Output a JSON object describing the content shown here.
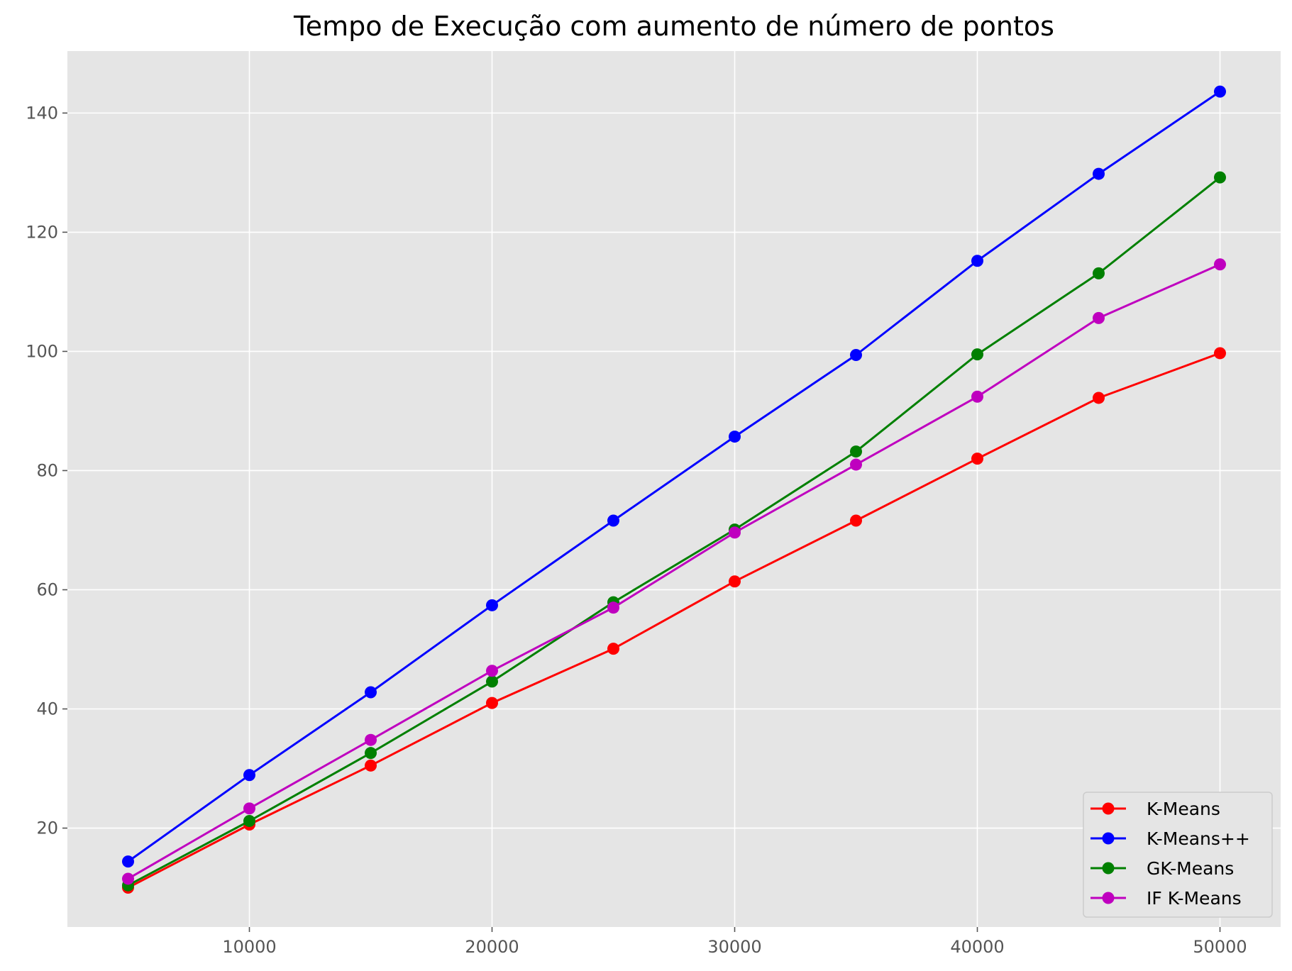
{
  "chart_data": {
    "type": "line",
    "title": "Tempo de Execução com aumento de número de pontos",
    "xlabel": "",
    "ylabel": "",
    "x": [
      5000,
      10000,
      15000,
      20000,
      25000,
      30000,
      35000,
      40000,
      45000,
      50000
    ],
    "xlim": [
      2500,
      52500
    ],
    "ylim": [
      3.4,
      150.4
    ],
    "xticks": [
      10000,
      20000,
      30000,
      40000,
      50000
    ],
    "yticks": [
      20,
      40,
      60,
      80,
      100,
      120,
      140
    ],
    "grid": true,
    "legend_position": "lower right",
    "background": "#e5e5e5",
    "grid_color": "#ffffff",
    "series": [
      {
        "name": "K-Means",
        "color": "#ff0000",
        "values": [
          10.0,
          20.6,
          30.5,
          41.0,
          50.1,
          61.4,
          71.6,
          82.0,
          92.2,
          99.7
        ]
      },
      {
        "name": "K-Means++",
        "color": "#0000ff",
        "values": [
          14.4,
          28.9,
          42.8,
          57.4,
          71.6,
          85.7,
          99.4,
          115.2,
          129.8,
          143.6
        ]
      },
      {
        "name": "GK-Means",
        "color": "#008000",
        "values": [
          10.4,
          21.2,
          32.6,
          44.6,
          57.9,
          70.1,
          83.2,
          99.5,
          113.1,
          129.2
        ]
      },
      {
        "name": "IF K-Means",
        "color": "#bf00bf",
        "values": [
          11.5,
          23.3,
          34.8,
          46.4,
          57.0,
          69.6,
          81.0,
          92.4,
          105.6,
          114.6
        ]
      }
    ]
  }
}
